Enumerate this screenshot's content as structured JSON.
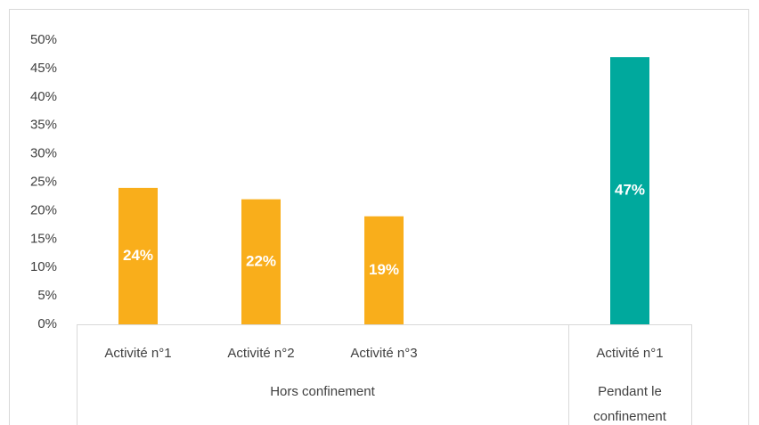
{
  "chart_data": {
    "type": "bar",
    "groups": [
      {
        "name": "Hors confinement",
        "color": "#f9ae1b",
        "categories": [
          "Activité n°1",
          "Activité n°2",
          "Activité n°3",
          null
        ],
        "values": [
          24,
          22,
          19,
          null
        ],
        "value_labels": [
          "24%",
          "22%",
          "19%",
          null
        ]
      },
      {
        "name": "Pendant le confinement",
        "color": "#00a99d",
        "categories": [
          "Activité n°1"
        ],
        "values": [
          47
        ],
        "value_labels": [
          "47%"
        ]
      }
    ],
    "ylim": [
      0,
      50
    ],
    "yticks": [
      {
        "value": 0,
        "label": "0%"
      },
      {
        "value": 5,
        "label": "5%"
      },
      {
        "value": 10,
        "label": "10%"
      },
      {
        "value": 15,
        "label": "15%"
      },
      {
        "value": 20,
        "label": "20%"
      },
      {
        "value": 25,
        "label": "25%"
      },
      {
        "value": 30,
        "label": "30%"
      },
      {
        "value": 35,
        "label": "35%"
      },
      {
        "value": 40,
        "label": "40%"
      },
      {
        "value": 45,
        "label": "45%"
      },
      {
        "value": 50,
        "label": "50%"
      }
    ],
    "grid": false
  }
}
